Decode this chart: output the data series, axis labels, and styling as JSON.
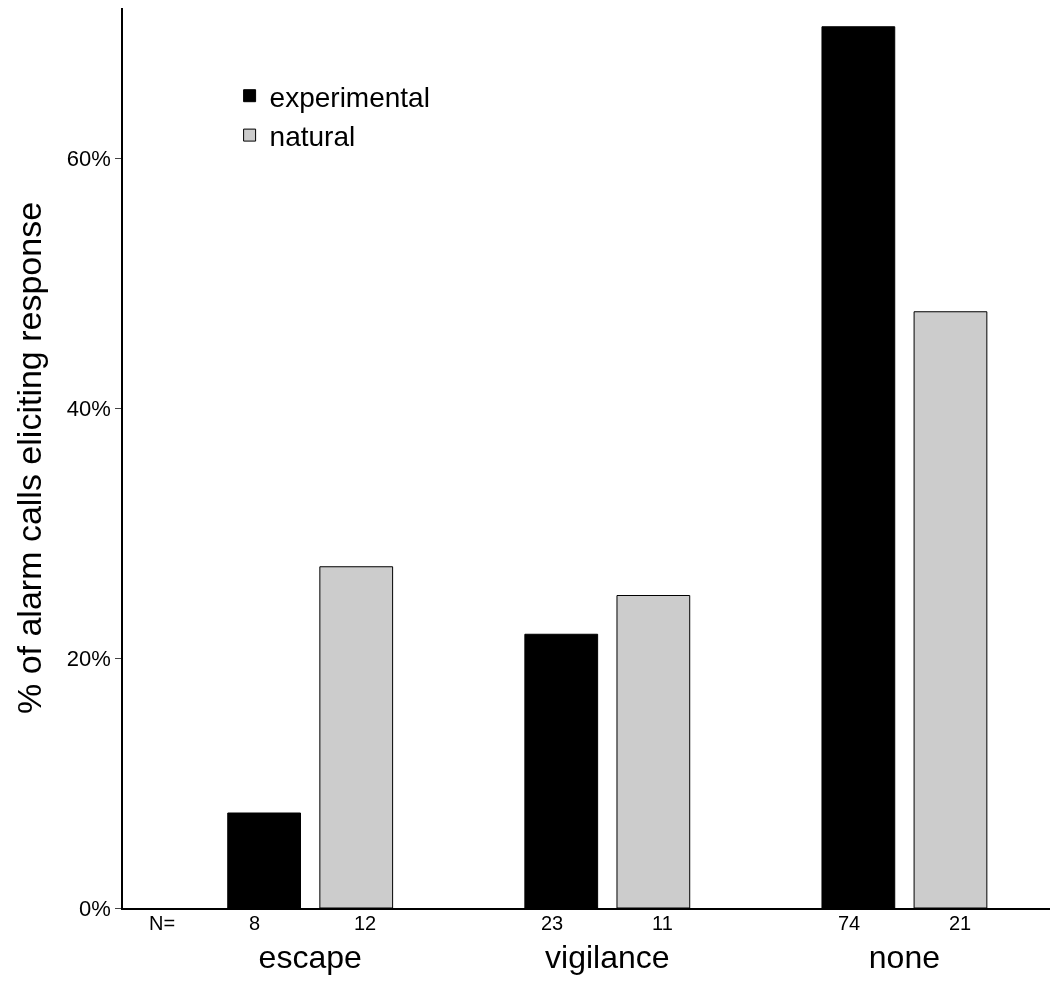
{
  "chart_data": {
    "type": "bar",
    "ylabel": "% of alarm calls eliciting response",
    "categories": [
      "escape",
      "vigilance",
      "none"
    ],
    "series": [
      {
        "name": "experimental",
        "color": "#000000",
        "values": [
          7.6,
          21.9,
          70.5
        ]
      },
      {
        "name": "natural",
        "color": "#cccccc",
        "values": [
          27.3,
          25.0,
          47.7
        ]
      }
    ],
    "ylim": [
      0,
      72
    ],
    "yticks": [
      {
        "value": 0,
        "label": "0%"
      },
      {
        "value": 20,
        "label": "20%"
      },
      {
        "value": 40,
        "label": "40%"
      },
      {
        "value": 60,
        "label": "60%"
      }
    ],
    "annotations": [
      "N=",
      "8",
      "12",
      "23",
      "11",
      "74",
      "21"
    ],
    "legend": "top left"
  }
}
